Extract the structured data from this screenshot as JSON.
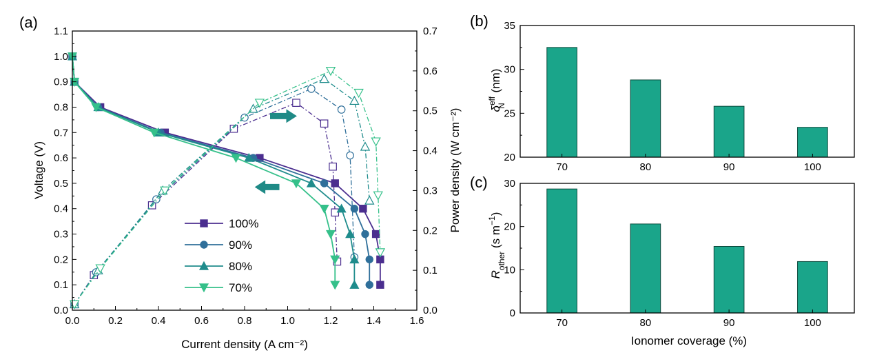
{
  "colors": {
    "s100": "#4b2e8f",
    "s90": "#2f6f9a",
    "s80": "#1f8c8c",
    "s70": "#35c08a",
    "bar": "#1aa58a",
    "bar_edge": "#0b4a3c"
  },
  "chart_data": [
    {
      "type": "line",
      "panel": "(a)",
      "xlabel": "Current density (A cm⁻²)",
      "ylabel": "Voltage (V)",
      "y2label": "Power density (W cm⁻²)",
      "xlim": [
        0.0,
        1.6
      ],
      "ylim": [
        0.0,
        1.1
      ],
      "y2lim": [
        0.0,
        0.7
      ],
      "x_ticks": [
        "0.0",
        "0.2",
        "0.4",
        "0.6",
        "0.8",
        "1.0",
        "1.2",
        "1.4",
        "1.6"
      ],
      "y_ticks": [
        "0.0",
        "0.1",
        "0.2",
        "0.3",
        "0.4",
        "0.5",
        "0.6",
        "0.7",
        "0.8",
        "0.9",
        "1.0",
        "1.1"
      ],
      "y2_ticks": [
        "0.0",
        "0.1",
        "0.2",
        "0.3",
        "0.4",
        "0.5",
        "0.6",
        "0.7"
      ],
      "legend_position": "bottom-center",
      "series": [
        {
          "name": "100%",
          "marker": "square",
          "color_key": "s100",
          "polarization": {
            "x": [
              0.0,
              0.01,
              0.13,
              0.43,
              0.87,
              1.22,
              1.35,
              1.41,
              1.43,
              1.43
            ],
            "y": [
              1.0,
              0.9,
              0.8,
              0.7,
              0.6,
              0.5,
              0.4,
              0.3,
              0.2,
              0.1
            ]
          },
          "power": {
            "x": [
              0.01,
              0.1,
              0.37,
              0.75,
              1.04,
              1.17,
              1.21,
              1.22,
              1.23
            ],
            "y": [
              0.015,
              0.088,
              0.263,
              0.455,
              0.52,
              0.468,
              0.36,
              0.245,
              0.122
            ]
          }
        },
        {
          "name": "90%",
          "marker": "circle",
          "color_key": "s90",
          "polarization": {
            "x": [
              0.0,
              0.01,
              0.12,
              0.41,
              0.84,
              1.17,
              1.31,
              1.36,
              1.38,
              1.38
            ],
            "y": [
              1.0,
              0.9,
              0.8,
              0.7,
              0.6,
              0.5,
              0.4,
              0.3,
              0.2,
              0.1
            ]
          },
          "power": {
            "x": [
              0.01,
              0.11,
              0.39,
              0.8,
              1.11,
              1.25,
              1.29,
              1.31
            ],
            "y": [
              0.015,
              0.095,
              0.278,
              0.483,
              0.555,
              0.503,
              0.388,
              0.133
            ]
          }
        },
        {
          "name": "80%",
          "marker": "triangle-up",
          "color_key": "s80",
          "polarization": {
            "x": [
              0.0,
              0.01,
              0.12,
              0.4,
              0.82,
              1.11,
              1.25,
              1.29,
              1.31,
              1.31
            ],
            "y": [
              1.0,
              0.9,
              0.8,
              0.7,
              0.6,
              0.5,
              0.4,
              0.3,
              0.2,
              0.1
            ]
          },
          "power": {
            "x": [
              0.01,
              0.12,
              0.42,
              0.84,
              1.17,
              1.31,
              1.36,
              1.38
            ],
            "y": [
              0.015,
              0.1,
              0.3,
              0.505,
              0.58,
              0.525,
              0.41,
              0.275
            ]
          }
        },
        {
          "name": "70%",
          "marker": "triangle-down",
          "color_key": "s70",
          "polarization": {
            "x": [
              0.0,
              0.01,
              0.11,
              0.38,
              0.76,
              1.04,
              1.17,
              1.2,
              1.22,
              1.22
            ],
            "y": [
              1.0,
              0.9,
              0.8,
              0.7,
              0.6,
              0.5,
              0.4,
              0.3,
              0.2,
              0.1
            ]
          },
          "power": {
            "x": [
              0.01,
              0.13,
              0.43,
              0.87,
              1.2,
              1.33,
              1.41,
              1.42,
              1.43
            ],
            "y": [
              0.015,
              0.105,
              0.3,
              0.52,
              0.6,
              0.545,
              0.423,
              0.288,
              0.145
            ]
          }
        }
      ],
      "annotations": [
        {
          "kind": "arrow",
          "direction": "right",
          "x": [
            0.92,
            1.04
          ],
          "y": 0.765,
          "meaning": "power density axis (right)"
        },
        {
          "kind": "arrow",
          "direction": "left",
          "x": [
            0.96,
            0.85
          ],
          "y": 0.485,
          "meaning": "voltage axis (left)"
        }
      ]
    },
    {
      "type": "bar",
      "panel": "(b)",
      "ylabel_main": "δ",
      "ylabel_sup": "eff",
      "ylabel_sub": "N",
      "ylabel_unit": " (nm)",
      "categories": [
        "70",
        "80",
        "90",
        "100"
      ],
      "values": [
        32.5,
        28.8,
        25.8,
        23.4
      ],
      "ylim": [
        20,
        35
      ],
      "y_ticks": [
        "20",
        "25",
        "30",
        "35"
      ]
    },
    {
      "type": "bar",
      "panel": "(c)",
      "ylabel_main": "R",
      "ylabel_sub": "other",
      "ylabel_unit_pre": " (s m",
      "ylabel_unit_sup": "−1",
      "ylabel_unit_post": ")",
      "xlabel": "Ionomer coverage (%)",
      "categories": [
        "70",
        "80",
        "90",
        "100"
      ],
      "values": [
        28.7,
        20.6,
        15.4,
        11.9
      ],
      "ylim": [
        0,
        30
      ],
      "y_ticks": [
        "0",
        "10",
        "20",
        "30"
      ]
    }
  ]
}
